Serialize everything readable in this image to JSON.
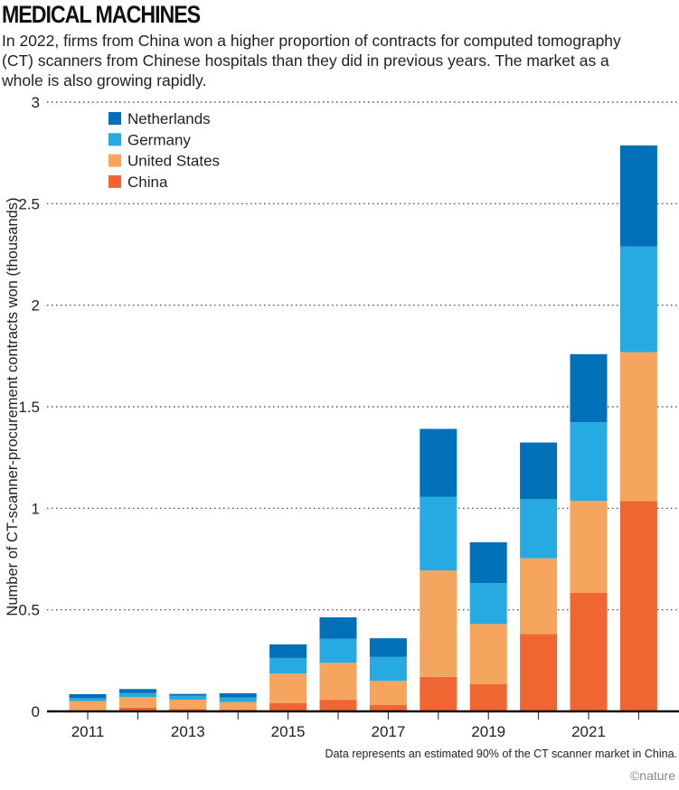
{
  "title": "MEDICAL MACHINES",
  "subtitle": "In 2022, firms from China won a higher proportion of contracts for computed tomography (CT) scanners from Chinese hospitals than they did in previous years. The market as a whole is also growing rapidly.",
  "footnote": "Data represents an estimated 90% of the CT scanner market in China.",
  "credit": "©nature",
  "chart_data": {
    "type": "bar",
    "stacked": true,
    "categories": [
      "2011",
      "2012",
      "2013",
      "2014",
      "2015",
      "2016",
      "2017",
      "2018",
      "2019",
      "2020",
      "2021",
      "2022"
    ],
    "x_tick_labels": [
      "2011",
      "2013",
      "2015",
      "2017",
      "2019",
      "2021"
    ],
    "ylabel": "Number of CT-scanner-procurement contracts won (thousands)",
    "ylim": [
      0,
      3
    ],
    "y_ticks": [
      "0",
      "0.5",
      "1",
      "1.5",
      "2",
      "2.5",
      "3"
    ],
    "grid": true,
    "legend_position": "top-left",
    "series": [
      {
        "name": "China",
        "color": "#ef6633",
        "values": [
          0.005,
          0.018,
          0.012,
          0.008,
          0.04,
          0.057,
          0.031,
          0.17,
          0.135,
          0.381,
          0.583,
          1.035
        ]
      },
      {
        "name": "United States",
        "color": "#f6a55e",
        "values": [
          0.045,
          0.052,
          0.046,
          0.038,
          0.146,
          0.182,
          0.119,
          0.524,
          0.295,
          0.373,
          0.454,
          0.734
        ]
      },
      {
        "name": "Germany",
        "color": "#27a9e1",
        "values": [
          0.015,
          0.02,
          0.02,
          0.022,
          0.077,
          0.118,
          0.118,
          0.363,
          0.201,
          0.292,
          0.387,
          0.52
        ]
      },
      {
        "name": "Netherlands",
        "color": "#0071b9",
        "values": [
          0.02,
          0.02,
          0.008,
          0.021,
          0.067,
          0.106,
          0.092,
          0.334,
          0.202,
          0.278,
          0.335,
          0.498
        ]
      }
    ]
  }
}
